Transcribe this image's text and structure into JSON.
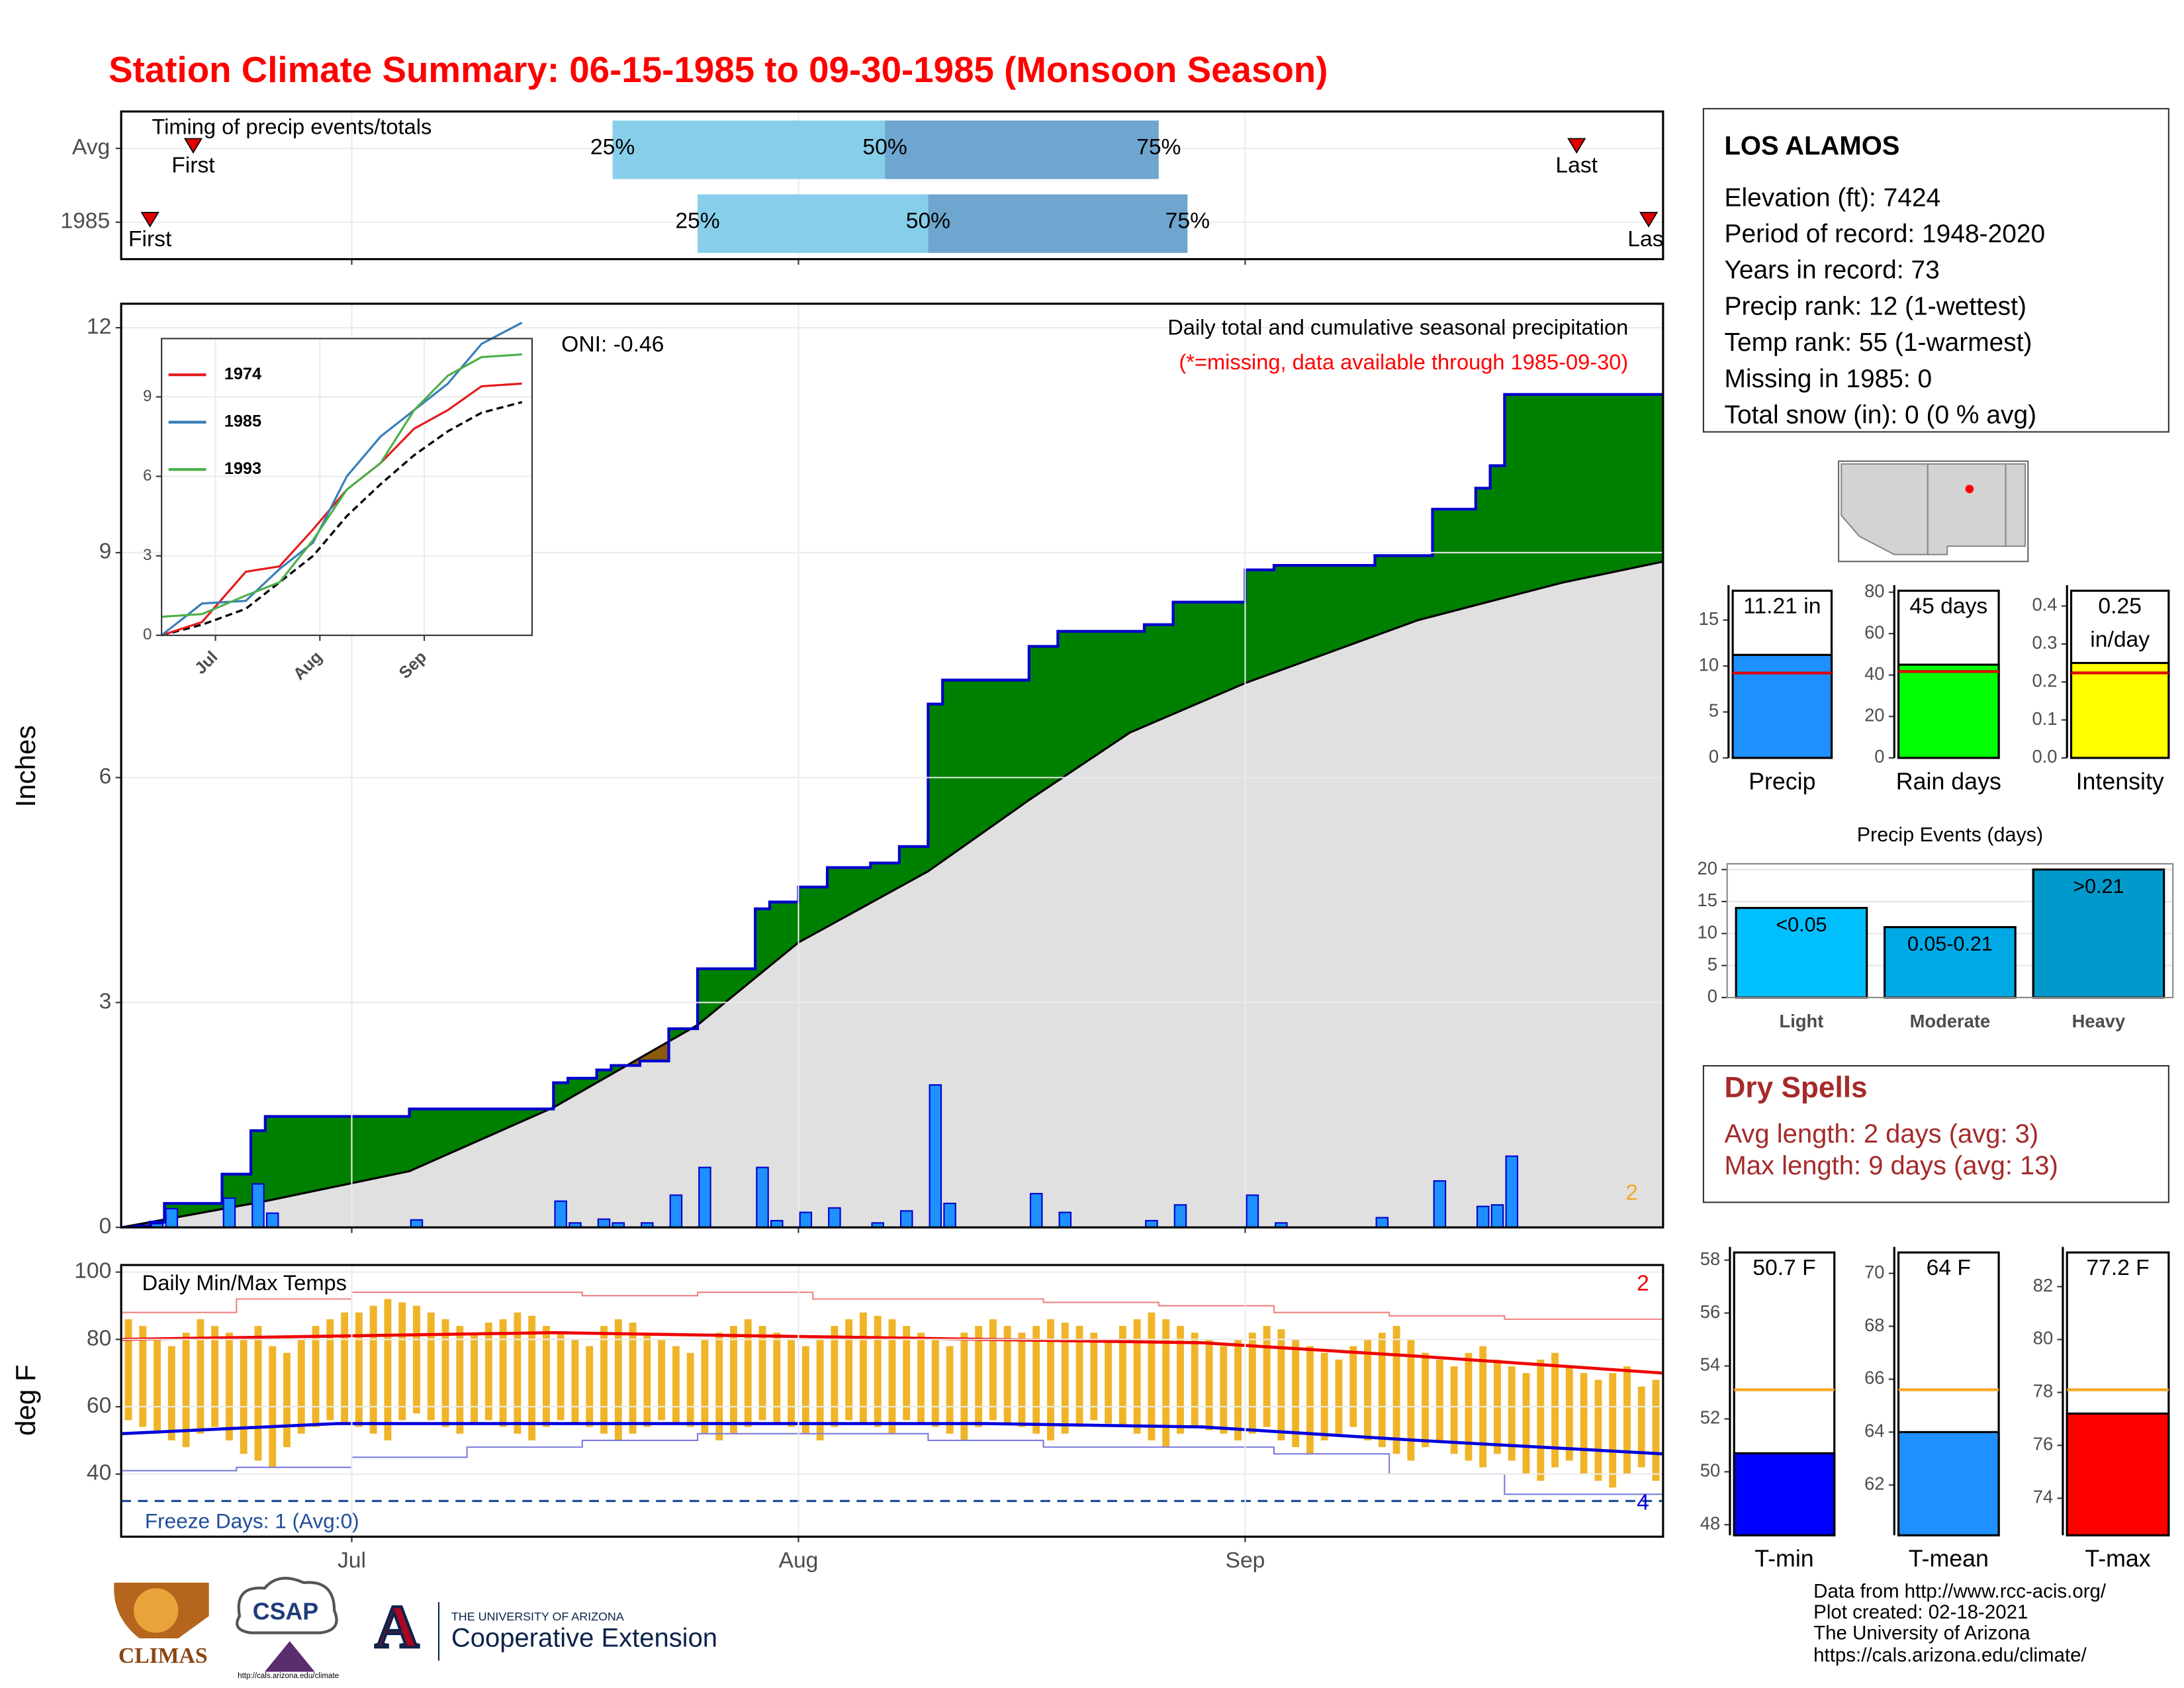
{
  "title": "Station Climate Summary: 06-15-1985 to 09-30-1985 (Monsoon Season)",
  "chart_data": [
    {
      "type": "timing",
      "title": "Timing of precip events/totals",
      "categories": [
        "Avg",
        "1985"
      ],
      "first": [
        5,
        2
      ],
      "p25": [
        34.1,
        40
      ],
      "p50": [
        53,
        56
      ],
      "p75": [
        72,
        74
      ],
      "last": [
        101,
        106
      ],
      "first_label": "First",
      "last_label": "Last",
      "p25_label": "25%",
      "p50_label": "50%",
      "p75_label": "75%",
      "colors": [
        "#87ceeb",
        "#6ea6cf"
      ],
      "marker_color": "#e00000",
      "xlim": [
        0,
        107
      ],
      "xticks": [
        16,
        47,
        78
      ],
      "grid": true
    },
    {
      "type": "cumulative_precip",
      "title": "Daily total and cumulative seasonal precipitation",
      "subtitle": "(*=missing, data available through 1985-09-30)",
      "annotation": "ONI: -0.46",
      "corner_note": "2",
      "ylabel": "Inches",
      "xlim": [
        0,
        107
      ],
      "ylim": [
        0,
        12.32
      ],
      "yticks": [
        0,
        3,
        6,
        9,
        12
      ],
      "xticks": [
        16,
        47,
        78
      ],
      "grid": true,
      "daily": {
        "color": "#1e90ff",
        "x": [
          1,
          2,
          3,
          7,
          9,
          10,
          20,
          30,
          31,
          33,
          34,
          36,
          38,
          40,
          44,
          45,
          47,
          49,
          52,
          54,
          56,
          57,
          63,
          65,
          71,
          73,
          78,
          80,
          87,
          91,
          94,
          95,
          96
        ],
        "values": [
          0.02,
          0.05,
          0.25,
          0.39,
          0.58,
          0.19,
          0.1,
          0.35,
          0.06,
          0.11,
          0.06,
          0.06,
          0.43,
          0.8,
          0.8,
          0.09,
          0.2,
          0.26,
          0.06,
          0.22,
          1.9,
          0.32,
          0.45,
          0.2,
          0.09,
          0.3,
          0.43,
          0.06,
          0.13,
          0.62,
          0.28,
          0.3,
          0.95
        ]
      },
      "average_cumulative": {
        "x": [
          0,
          10,
          20,
          30,
          40,
          47,
          56,
          63,
          70,
          78,
          90,
          100,
          107
        ],
        "values": [
          0,
          0.35,
          0.75,
          1.6,
          2.7,
          3.8,
          4.75,
          5.7,
          6.6,
          7.26,
          8.1,
          8.6,
          8.88
        ]
      },
      "line_color": "#0000cd",
      "above_color": "#008000",
      "below_color": "#8b5a0a",
      "avg_fill": "#e0e0e0"
    },
    {
      "type": "inset_lines",
      "xlim": [
        0,
        110
      ],
      "ylim": [
        0,
        11.2
      ],
      "yticks": [
        0,
        3,
        6,
        9
      ],
      "xticks": [
        {
          "value": 16,
          "label": "Jul"
        },
        {
          "value": 47,
          "label": "Aug"
        },
        {
          "value": 78,
          "label": "Sep"
        }
      ],
      "grid": true,
      "series": [
        {
          "name": "1974",
          "color": "#e41a1c",
          "x": [
            0,
            12,
            25,
            35,
            45,
            55,
            65,
            75,
            85,
            95,
            107
          ],
          "values": [
            0,
            0.5,
            2.4,
            2.6,
            4,
            5.5,
            6.5,
            7.8,
            8.5,
            9.4,
            9.5
          ]
        },
        {
          "name": "1985",
          "color": "#377eb8",
          "x": [
            0,
            12,
            25,
            35,
            45,
            55,
            65,
            75,
            85,
            95,
            107
          ],
          "values": [
            0,
            1.2,
            1.3,
            2.5,
            3.5,
            6,
            7.5,
            8.5,
            9.5,
            11,
            11.8
          ]
        },
        {
          "name": "1993",
          "color": "#4daf4a",
          "x": [
            0,
            12,
            25,
            35,
            45,
            55,
            65,
            75,
            85,
            95,
            107
          ],
          "values": [
            0.7,
            0.8,
            1.5,
            2,
            3.6,
            5.5,
            6.5,
            8.5,
            9.8,
            10.5,
            10.6
          ]
        }
      ],
      "average": {
        "x": [
          0,
          12,
          25,
          35,
          45,
          55,
          65,
          75,
          85,
          95,
          107
        ],
        "values": [
          0,
          0.4,
          1,
          2,
          3,
          4.5,
          5.7,
          6.8,
          7.7,
          8.4,
          8.8
        ]
      }
    },
    {
      "type": "temp_range",
      "title": "Daily Min/Max Temps",
      "ylabel": "deg F",
      "xlim": [
        0,
        107
      ],
      "ylim": [
        21.4,
        102.1
      ],
      "yticks": [
        40,
        60,
        80,
        100
      ],
      "xticks": [
        {
          "value": 16,
          "label": "Jul"
        },
        {
          "value": 47,
          "label": "Aug"
        },
        {
          "value": 78,
          "label": "Sep"
        }
      ],
      "grid": true,
      "tmax": [
        86,
        84,
        80,
        78,
        82,
        86,
        84,
        82,
        80,
        84,
        78,
        76,
        80,
        84,
        86,
        88,
        88,
        90,
        92,
        91,
        90,
        88,
        86,
        84,
        82,
        85,
        86,
        88,
        87,
        84,
        82,
        80,
        78,
        84,
        86,
        85,
        82,
        80,
        78,
        76,
        80,
        82,
        84,
        86,
        84,
        82,
        80,
        78,
        80,
        84,
        86,
        88,
        87,
        86,
        84,
        82,
        80,
        78,
        82,
        84,
        86,
        84,
        82,
        84,
        86,
        85,
        84,
        82,
        80,
        84,
        86,
        88,
        86,
        84,
        82,
        80,
        78,
        80,
        82,
        84,
        83,
        80,
        78,
        76,
        74,
        78,
        80,
        82,
        84,
        80,
        76,
        74,
        72,
        76,
        78,
        74,
        72,
        70,
        74,
        76,
        72,
        70,
        68,
        70,
        72,
        66,
        68,
        64
      ],
      "tmin": [
        56,
        54,
        52,
        50,
        48,
        52,
        54,
        50,
        46,
        44,
        42,
        48,
        52,
        54,
        56,
        55,
        54,
        52,
        50,
        56,
        58,
        56,
        54,
        52,
        55,
        56,
        54,
        52,
        50,
        54,
        56,
        55,
        54,
        52,
        50,
        52,
        54,
        56,
        55,
        54,
        52,
        50,
        52,
        54,
        56,
        55,
        54,
        52,
        50,
        54,
        56,
        55,
        54,
        52,
        56,
        55,
        54,
        52,
        50,
        54,
        56,
        55,
        54,
        52,
        50,
        52,
        54,
        56,
        55,
        54,
        52,
        50,
        48,
        52,
        54,
        53,
        52,
        50,
        52,
        54,
        50,
        48,
        46,
        50,
        52,
        54,
        50,
        48,
        46,
        44,
        48,
        50,
        46,
        44,
        42,
        46,
        44,
        40,
        38,
        42,
        44,
        40,
        38,
        36,
        40,
        42,
        38,
        44
      ],
      "bar_color": "#f0b429",
      "avg_max": {
        "color": "#ee0000",
        "x": [
          0,
          15,
          30,
          45,
          60,
          75,
          90,
          107
        ],
        "values": [
          80,
          81,
          82,
          81,
          80,
          79,
          75,
          70
        ]
      },
      "avg_min": {
        "color": "#0000dd",
        "x": [
          0,
          15,
          30,
          45,
          60,
          75,
          90,
          107
        ],
        "values": [
          52,
          55,
          55,
          55,
          55,
          54,
          50,
          46
        ]
      },
      "record_max": {
        "color": "#f08080",
        "x": [
          0,
          8,
          16,
          24,
          32,
          40,
          48,
          56,
          64,
          72,
          80,
          88,
          96,
          107
        ],
        "values": [
          88,
          92,
          94,
          94,
          93,
          94,
          92,
          92,
          91,
          90,
          88,
          87,
          86,
          84
        ]
      },
      "record_min": {
        "color": "#7b7bdd",
        "x": [
          0,
          8,
          16,
          24,
          32,
          40,
          48,
          56,
          64,
          72,
          80,
          88,
          96,
          107
        ],
        "values": [
          41,
          42,
          45,
          48,
          50,
          52,
          52,
          50,
          48,
          48,
          46,
          40,
          34,
          28
        ]
      },
      "freeze": 32,
      "freeze_color": "#1f4e9a",
      "freeze_label": "Freeze Days: 1 (Avg:0)",
      "note_high": "2",
      "note_low": "4"
    },
    {
      "type": "single_bar",
      "label": "Precip",
      "value": 11.21,
      "value_labels": [
        "11.21 in"
      ],
      "average": 9.24,
      "color": "#1e90ff",
      "avg_color": "#e00000",
      "ylim": [
        0,
        18.8
      ],
      "yticks": [
        0,
        5,
        10,
        15
      ]
    },
    {
      "type": "single_bar",
      "label": "Rain days",
      "value": 45,
      "value_labels": [
        "45 days"
      ],
      "average": 41.7,
      "color": "#00ff00",
      "avg_color": "#e00000",
      "ylim": [
        0,
        83.4
      ],
      "yticks": [
        0,
        20,
        40,
        60,
        80
      ]
    },
    {
      "type": "single_bar",
      "label": "Intensity",
      "value": 0.25,
      "value_labels": [
        "0.25",
        "in/day"
      ],
      "average": 0.224,
      "color": "#ffff00",
      "avg_color": "#e00000",
      "ylim": [
        0,
        0.455
      ],
      "yticks": [
        {
          "value": 0,
          "label": "0.0"
        },
        0.1,
        0.2,
        0.3,
        0.4
      ]
    },
    {
      "type": "events",
      "title": "Precip Events (days)",
      "categories": [
        "Light",
        "Moderate",
        "Heavy"
      ],
      "bin_labels": [
        "<0.05",
        "0.05-0.21",
        ">0.21"
      ],
      "values": [
        14,
        11,
        20
      ],
      "colors": [
        "#00bfff",
        "#00a9e6",
        "#0099cc"
      ],
      "ylim": [
        0,
        20.9
      ],
      "yticks": [
        0,
        5,
        10,
        15,
        20
      ],
      "grid": true
    },
    {
      "type": "single_bar",
      "label": "T-min",
      "value": 50.7,
      "value_labels": [
        "50.7 F"
      ],
      "average": 53.1,
      "color": "#0000ff",
      "avg_color": "#f5a623",
      "ylim": [
        47.6,
        58.5
      ],
      "yticks": [
        48,
        50,
        52,
        54,
        56,
        58
      ]
    },
    {
      "type": "single_bar",
      "label": "T-mean",
      "value": 64,
      "value_labels": [
        "64 F"
      ],
      "average": 65.6,
      "color": "#1e90ff",
      "avg_color": "#f5a623",
      "ylim": [
        60.1,
        71
      ],
      "yticks": [
        62,
        64,
        66,
        68,
        70
      ]
    },
    {
      "type": "single_bar",
      "label": "T-max",
      "value": 77.2,
      "value_labels": [
        "77.2 F"
      ],
      "average": 78.1,
      "color": "#ff0000",
      "avg_color": "#f5a623",
      "ylim": [
        72.6,
        83.5
      ],
      "yticks": [
        74,
        76,
        78,
        80,
        82
      ]
    }
  ],
  "station": {
    "name": "LOS ALAMOS",
    "lines": [
      "Elevation (ft): 7424",
      "Period of record: 1948-2020",
      "Years in record: 73",
      "Precip rank: 12 (1-wettest)",
      "Temp rank: 55 (1-warmest)",
      "Missing in 1985: 0",
      "Total snow (in): 0 (0 % avg)"
    ]
  },
  "dry_spells": {
    "title": "Dry Spells",
    "lines": [
      "Avg length: 2 days (avg: 3)",
      "Max length: 9 days (avg: 13)"
    ]
  },
  "logos": {
    "climas": "CLIMAS",
    "csap": "CSAP",
    "csap_url": "http://cals.arizona.edu/climate",
    "ua_mark": "A",
    "ua_name": "THE UNIVERSITY OF ARIZONA",
    "ua_unit": "Cooperative Extension"
  },
  "credits": [
    "Data from http://www.rcc-acis.org/",
    "Plot created: 02-18-2021",
    "The University of Arizona",
    "https://cals.arizona.edu/climate/"
  ]
}
